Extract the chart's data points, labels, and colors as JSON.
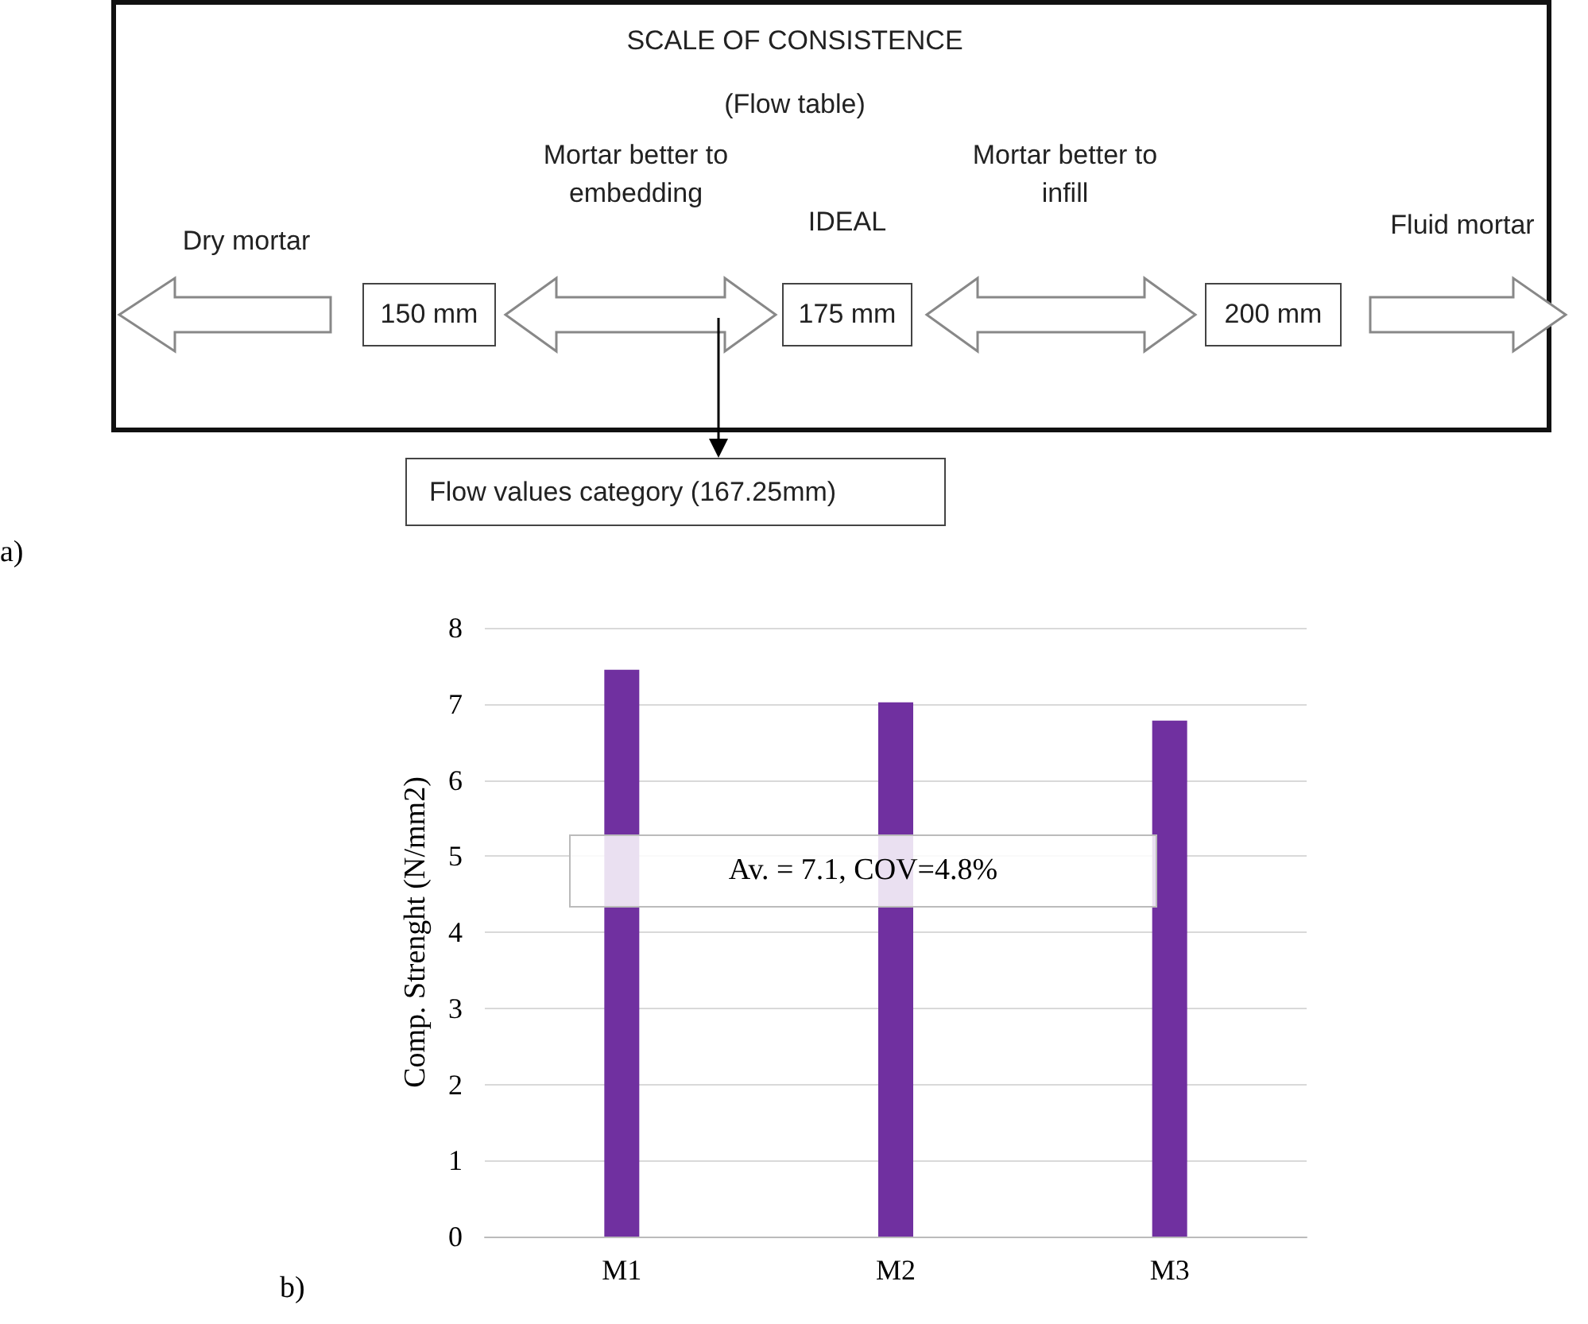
{
  "chart_data": [
    {
      "type": "other",
      "title": "SCALE OF CONSISTENCE",
      "subtitle": "(Flow table)",
      "annotations": [
        "Dry mortar",
        "150 mm",
        "Mortar better to embedding",
        "IDEAL",
        "175 mm",
        "Mortar better to infill",
        "200 mm",
        "Fluid mortar",
        "Flow values category (167.25mm)",
        "a)"
      ]
    },
    {
      "type": "bar",
      "categories": [
        "M1",
        "M2",
        "M3"
      ],
      "values": [
        7.45,
        7.02,
        6.78
      ],
      "color": "#7030a0",
      "ylabel": "Comp. Strenght (N/mm2)",
      "ylim": [
        0,
        8
      ],
      "yticks": [
        0,
        1,
        2,
        3,
        4,
        5,
        6,
        7,
        8
      ],
      "grid": "y",
      "annotations": [
        "Av. = 7.1, COV=4.8%",
        "b)"
      ]
    }
  ]
}
